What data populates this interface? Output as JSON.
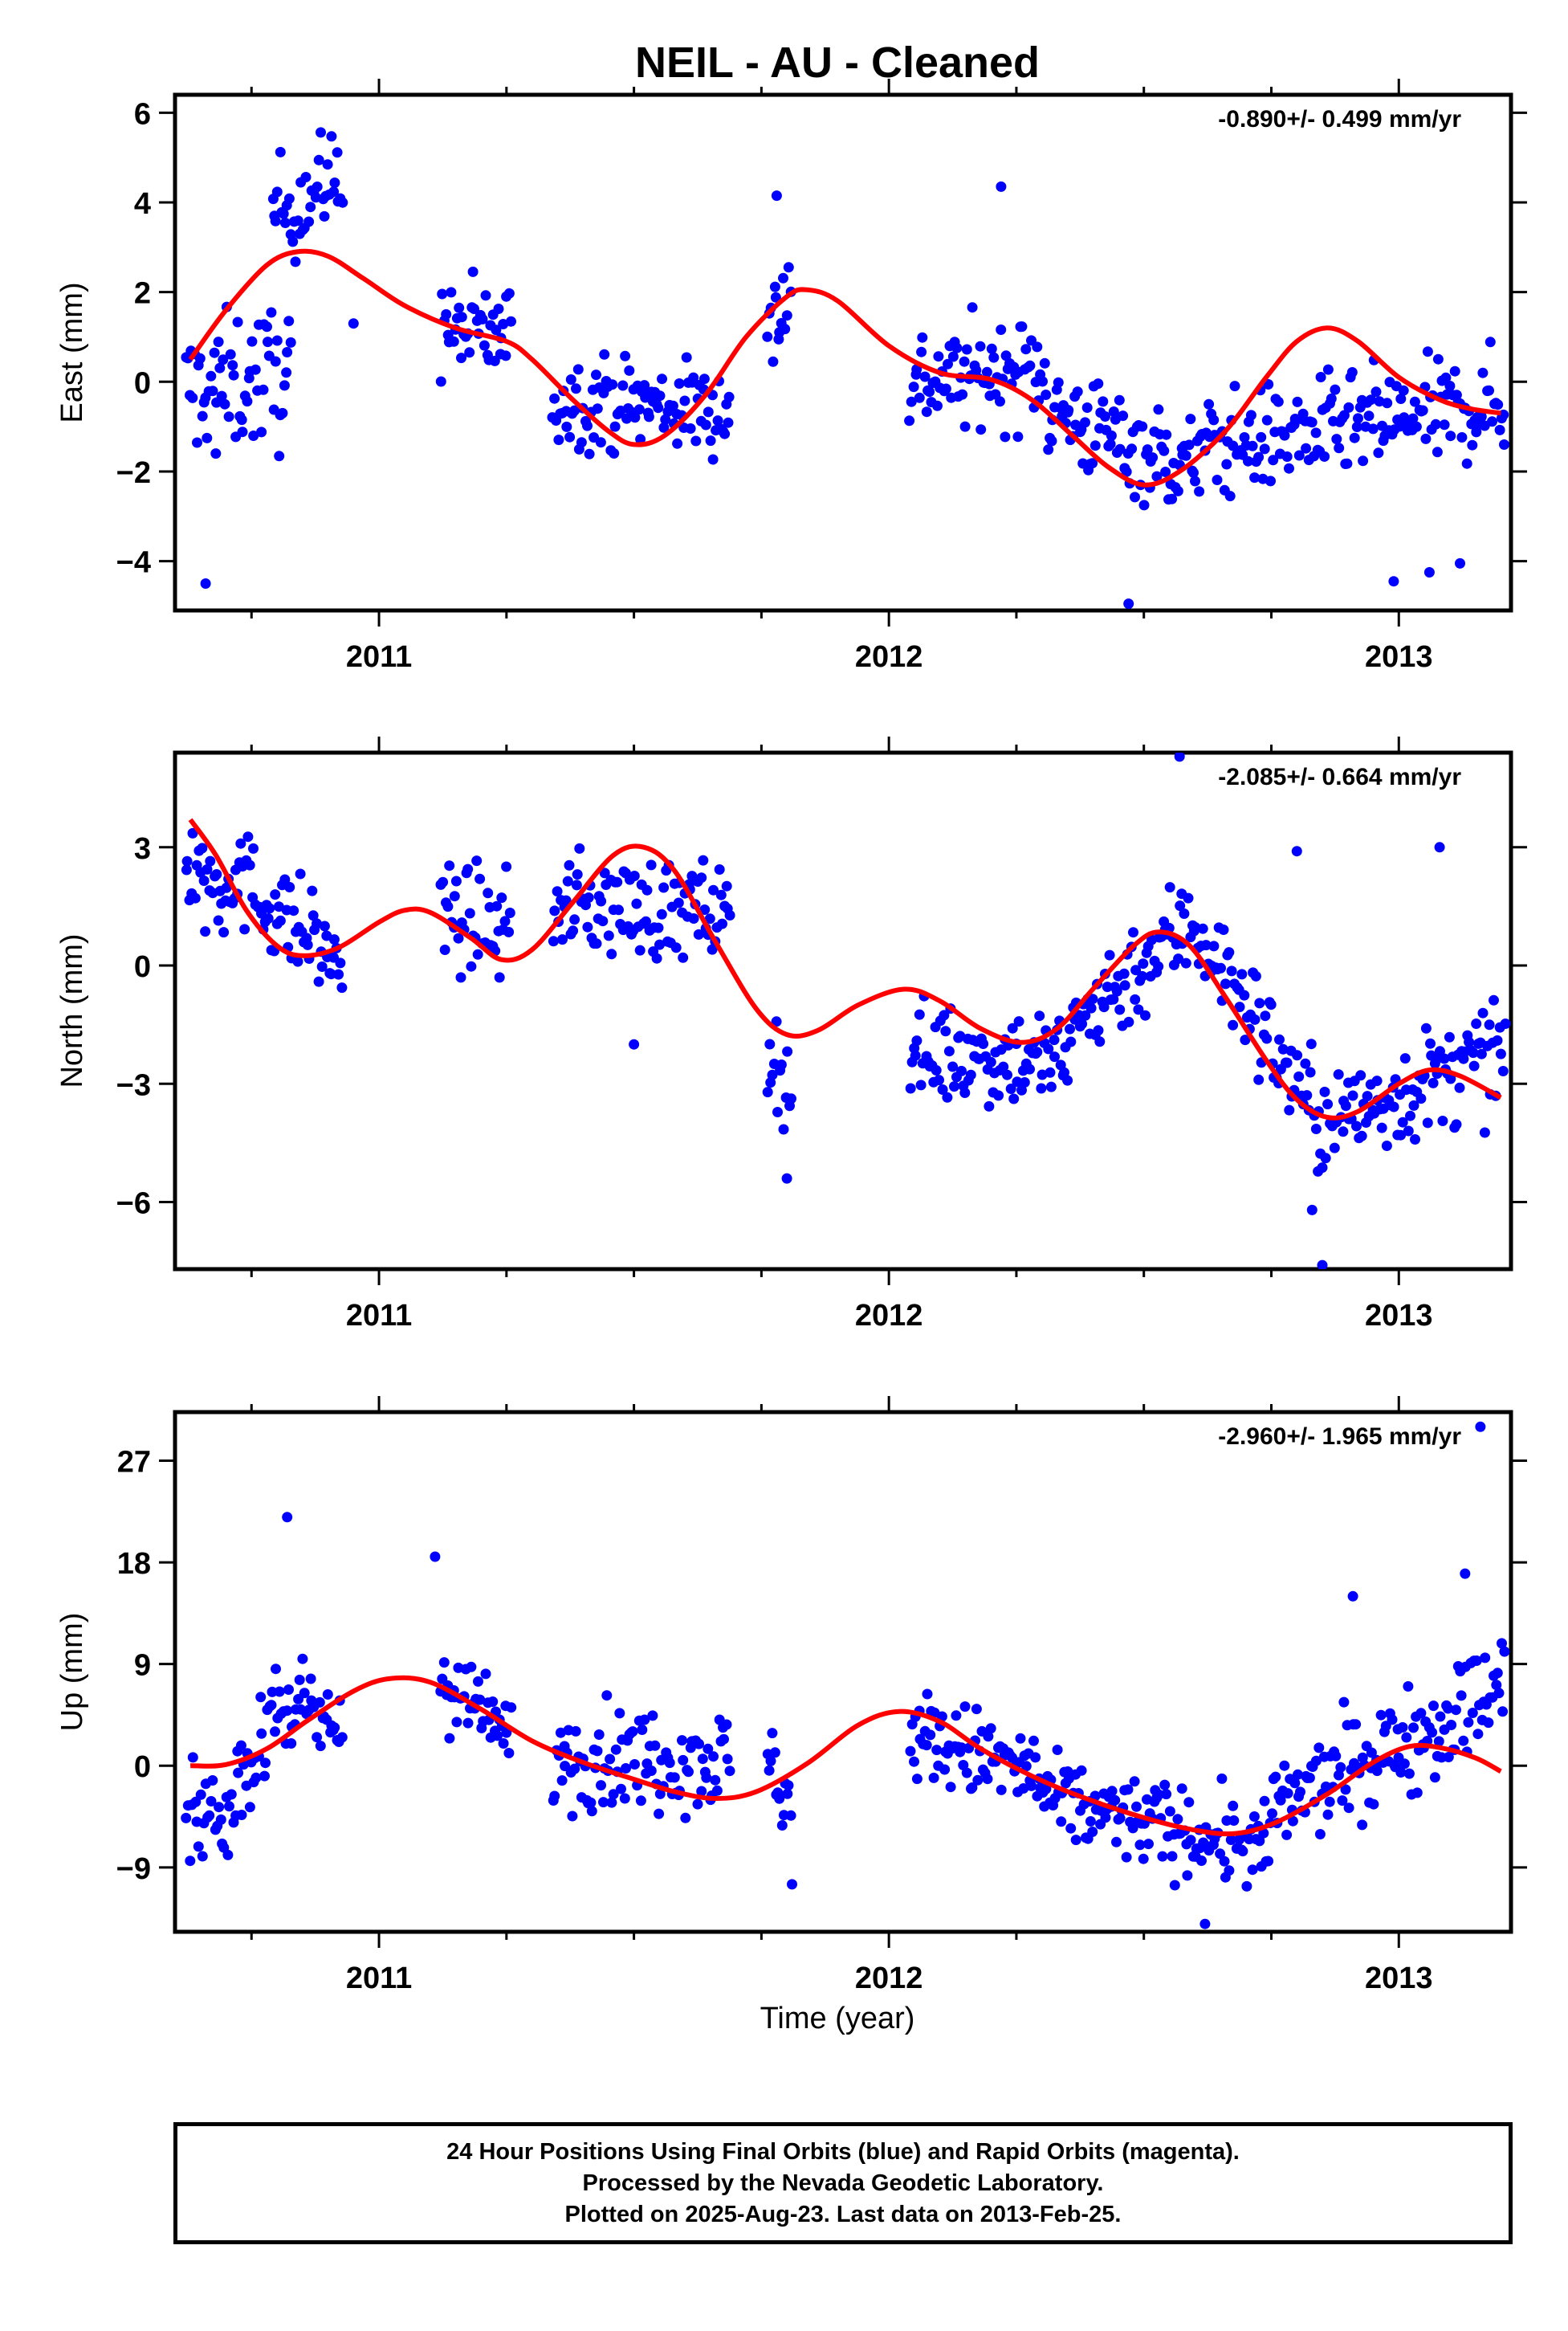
{
  "chart_data": {
    "title": "NEIL  - AU - Cleaned",
    "xlabel": "Time (year)",
    "footer": [
      "24 Hour Positions Using Final Orbits (blue) and Rapid Orbits (magenta).",
      "Processed by the Nevada Geodetic Laboratory.",
      "Plotted on 2025-Aug-23. Last data on 2013-Feb-25."
    ],
    "xlim": [
      2010.6,
      2013.22
    ],
    "xticks": [
      "2011",
      "2012",
      "2013"
    ],
    "xtick_values": [
      2011,
      2012,
      2013
    ],
    "colors": {
      "final_orbits": "#0000ff",
      "rapid_orbits": "#ff00ff",
      "model": "#ff0000"
    },
    "panels": [
      {
        "type": "scatter",
        "ylabel": "East (mm)",
        "rate_label": "-0.890+/- 0.499 mm/yr",
        "ylim": [
          -5.1,
          6.4
        ],
        "yticks": [
          6,
          4,
          2,
          0,
          -2,
          -4
        ],
        "ytick_labels": [
          "6",
          "4",
          "2",
          "0",
          "−2",
          "−4"
        ],
        "series": [
          {
            "kind": "points",
            "segments": [
              [
                2010.62,
                2010.83,
                -0.2,
                0.2,
                1.1,
                1.3,
                0.0,
                0.0
              ],
              [
                2010.79,
                2010.93,
                3.7,
                4.6,
                0.9,
                0.9,
                0.0,
                0.0
              ],
              [
                2011.12,
                2011.26,
                1.2,
                1.0,
                0.9,
                0.9,
                0.0,
                0.0
              ],
              [
                2011.34,
                2011.69,
                -0.4,
                -0.6,
                0.8,
                0.8,
                1.4,
                0.0
              ],
              [
                2011.76,
                2011.81,
                1.0,
                2.2,
                1.0,
                0.9,
                0.0,
                0.0
              ],
              [
                2012.04,
                2012.31,
                0.0,
                0.3,
                0.9,
                0.9,
                0.9,
                0.0
              ],
              [
                2012.31,
                2012.6,
                -0.6,
                -2.0,
                0.9,
                0.9,
                0.0,
                0.0
              ],
              [
                2012.6,
                2013.21,
                -1.5,
                -0.5,
                0.9,
                0.9,
                1.6,
                0.0
              ]
            ],
            "outliers": [
              [
                2010.66,
                -4.5
              ],
              [
                2010.68,
                -1.6
              ],
              [
                2012.22,
                4.35
              ],
              [
                2011.78,
                4.15
              ],
              [
                2012.47,
                -4.95
              ],
              [
                2012.99,
                -4.45
              ],
              [
                2013.06,
                -4.25
              ],
              [
                2013.12,
                -4.05
              ],
              [
                2010.95,
                1.3
              ]
            ]
          },
          {
            "kind": "curve",
            "points": [
              [
                2010.63,
                0.5
              ],
              [
                2010.7,
                1.6
              ],
              [
                2010.78,
                2.6
              ],
              [
                2010.84,
                2.9
              ],
              [
                2010.9,
                2.8
              ],
              [
                2010.97,
                2.3
              ],
              [
                2011.05,
                1.7
              ],
              [
                2011.15,
                1.2
              ],
              [
                2011.25,
                0.9
              ],
              [
                2011.3,
                0.5
              ],
              [
                2011.38,
                -0.4
              ],
              [
                2011.45,
                -1.1
              ],
              [
                2011.5,
                -1.4
              ],
              [
                2011.56,
                -1.2
              ],
              [
                2011.64,
                -0.3
              ],
              [
                2011.72,
                1.0
              ],
              [
                2011.8,
                1.9
              ],
              [
                2011.84,
                2.05
              ],
              [
                2011.9,
                1.8
              ],
              [
                2012.0,
                0.8
              ],
              [
                2012.1,
                0.2
              ],
              [
                2012.2,
                0.05
              ],
              [
                2012.28,
                -0.4
              ],
              [
                2012.36,
                -1.2
              ],
              [
                2012.43,
                -1.9
              ],
              [
                2012.5,
                -2.3
              ],
              [
                2012.57,
                -2.0
              ],
              [
                2012.66,
                -1.1
              ],
              [
                2012.74,
                0.1
              ],
              [
                2012.8,
                0.9
              ],
              [
                2012.86,
                1.2
              ],
              [
                2012.92,
                0.9
              ],
              [
                2013.0,
                0.1
              ],
              [
                2013.08,
                -0.4
              ],
              [
                2013.14,
                -0.6
              ],
              [
                2013.2,
                -0.7
              ]
            ]
          }
        ]
      },
      {
        "type": "scatter",
        "ylabel": "North (mm)",
        "rate_label": "-2.085+/- 0.664 mm/yr",
        "ylim": [
          -7.7,
          5.4
        ],
        "yticks": [
          3,
          0,
          -3,
          -6
        ],
        "ytick_labels": [
          "3",
          "0",
          "−3",
          "−6"
        ],
        "series": [
          {
            "kind": "points",
            "segments": [
              [
                2010.62,
                2010.7,
                2.5,
                2.0,
                1.1,
                1.2,
                0.0,
                0.0
              ],
              [
                2010.7,
                2010.93,
                2.5,
                0.0,
                1.0,
                1.0,
                0.0,
                0.0
              ],
              [
                2011.12,
                2011.26,
                1.3,
                0.9,
                1.0,
                1.0,
                0.0,
                0.0
              ],
              [
                2011.34,
                2011.69,
                1.6,
                1.3,
                1.0,
                1.0,
                0.0,
                0.0
              ],
              [
                2011.76,
                2011.81,
                -2.0,
                -3.2,
                0.9,
                0.9,
                0.0,
                0.0
              ],
              [
                2012.04,
                2012.36,
                -2.2,
                -2.4,
                1.0,
                1.0,
                0.0,
                0.0
              ],
              [
                2012.36,
                2012.6,
                -1.5,
                1.2,
                1.0,
                1.1,
                0.0,
                0.0
              ],
              [
                2012.6,
                2012.86,
                1.0,
                -4.2,
                1.0,
                1.1,
                0.0,
                0.0
              ],
              [
                2012.86,
                2013.21,
                -4.0,
                -2.2,
                1.0,
                1.1,
                0.0,
                0.0
              ]
            ],
            "outliers": [
              [
                2011.5,
                -2.0
              ],
              [
                2011.8,
                -5.4
              ],
              [
                2012.57,
                5.3
              ],
              [
                2012.85,
                -7.6
              ],
              [
                2012.83,
                -6.2
              ],
              [
                2012.8,
                2.9
              ],
              [
                2013.08,
                3.0
              ]
            ]
          },
          {
            "kind": "curve",
            "points": [
              [
                2010.63,
                3.7
              ],
              [
                2010.68,
                2.8
              ],
              [
                2010.74,
                1.4
              ],
              [
                2010.8,
                0.5
              ],
              [
                2010.85,
                0.25
              ],
              [
                2010.92,
                0.45
              ],
              [
                2011.0,
                1.1
              ],
              [
                2011.05,
                1.4
              ],
              [
                2011.1,
                1.35
              ],
              [
                2011.18,
                0.7
              ],
              [
                2011.24,
                0.15
              ],
              [
                2011.3,
                0.4
              ],
              [
                2011.38,
                1.6
              ],
              [
                2011.46,
                2.8
              ],
              [
                2011.52,
                3.0
              ],
              [
                2011.58,
                2.4
              ],
              [
                2011.66,
                0.6
              ],
              [
                2011.74,
                -1.1
              ],
              [
                2011.8,
                -1.75
              ],
              [
                2011.86,
                -1.65
              ],
              [
                2011.94,
                -1.0
              ],
              [
                2012.03,
                -0.6
              ],
              [
                2012.1,
                -0.9
              ],
              [
                2012.18,
                -1.6
              ],
              [
                2012.26,
                -1.95
              ],
              [
                2012.33,
                -1.6
              ],
              [
                2012.4,
                -0.6
              ],
              [
                2012.48,
                0.5
              ],
              [
                2012.53,
                0.85
              ],
              [
                2012.59,
                0.5
              ],
              [
                2012.66,
                -0.8
              ],
              [
                2012.74,
                -2.4
              ],
              [
                2012.8,
                -3.4
              ],
              [
                2012.86,
                -3.85
              ],
              [
                2012.92,
                -3.7
              ],
              [
                2013.0,
                -3.0
              ],
              [
                2013.06,
                -2.65
              ],
              [
                2013.12,
                -2.8
              ],
              [
                2013.2,
                -3.35
              ]
            ]
          }
        ]
      },
      {
        "type": "scatter",
        "ylabel": "Up (mm)",
        "rate_label": "-2.960+/- 1.965 mm/yr",
        "ylim": [
          -14.7,
          31.3
        ],
        "yticks": [
          27,
          18,
          9,
          0,
          -9
        ],
        "ytick_labels": [
          "27",
          "18",
          "9",
          "0",
          "−9"
        ],
        "series": [
          {
            "kind": "points",
            "segments": [
              [
                2010.62,
                2010.72,
                -5.0,
                -4.0,
                3.0,
                3.0,
                0.0,
                0.0
              ],
              [
                2010.72,
                2010.78,
                0.0,
                1.0,
                3.0,
                3.0,
                0.0,
                0.0
              ],
              [
                2010.78,
                2010.93,
                6.0,
                3.0,
                3.0,
                3.0,
                0.0,
                0.0
              ],
              [
                2011.12,
                2011.26,
                8.0,
                2.0,
                3.0,
                3.0,
                0.0,
                0.0
              ],
              [
                2011.34,
                2011.69,
                1.0,
                0.5,
                3.5,
                3.5,
                0.0,
                0.0
              ],
              [
                2011.76,
                2011.81,
                1.0,
                -4.0,
                3.0,
                3.0,
                0.0,
                0.0
              ],
              [
                2012.04,
                2012.3,
                3.0,
                -1.0,
                3.2,
                3.2,
                0.0,
                0.0
              ],
              [
                2012.3,
                2012.75,
                -3.0,
                -7.5,
                3.0,
                3.0,
                0.0,
                0.0
              ],
              [
                2012.75,
                2013.21,
                -4.0,
                7.0,
                3.3,
                3.8,
                0.0,
                0.0
              ]
            ],
            "outliers": [
              [
                2010.82,
                22.0
              ],
              [
                2011.11,
                18.5
              ],
              [
                2011.81,
                -10.5
              ],
              [
                2013.16,
                30.0
              ],
              [
                2013.13,
                17.0
              ],
              [
                2012.91,
                15.0
              ],
              [
                2012.62,
                -14.0
              ]
            ]
          },
          {
            "kind": "curve",
            "points": [
              [
                2010.63,
                0.0
              ],
              [
                2010.7,
                0.1
              ],
              [
                2010.78,
                1.5
              ],
              [
                2010.86,
                4.0
              ],
              [
                2010.95,
                6.6
              ],
              [
                2011.02,
                7.7
              ],
              [
                2011.1,
                7.4
              ],
              [
                2011.2,
                5.0
              ],
              [
                2011.3,
                2.2
              ],
              [
                2011.4,
                0.3
              ],
              [
                2011.5,
                -1.2
              ],
              [
                2011.58,
                -2.3
              ],
              [
                2011.66,
                -2.9
              ],
              [
                2011.74,
                -2.3
              ],
              [
                2011.84,
                0.2
              ],
              [
                2011.94,
                3.6
              ],
              [
                2012.02,
                4.8
              ],
              [
                2012.1,
                3.9
              ],
              [
                2012.18,
                1.5
              ],
              [
                2012.28,
                -0.9
              ],
              [
                2012.38,
                -2.8
              ],
              [
                2012.5,
                -4.6
              ],
              [
                2012.6,
                -5.7
              ],
              [
                2012.68,
                -6.0
              ],
              [
                2012.76,
                -5.0
              ],
              [
                2012.86,
                -2.5
              ],
              [
                2012.95,
                0.3
              ],
              [
                2013.02,
                1.7
              ],
              [
                2013.08,
                1.6
              ],
              [
                2013.15,
                0.7
              ],
              [
                2013.2,
                -0.5
              ]
            ]
          }
        ]
      }
    ]
  }
}
